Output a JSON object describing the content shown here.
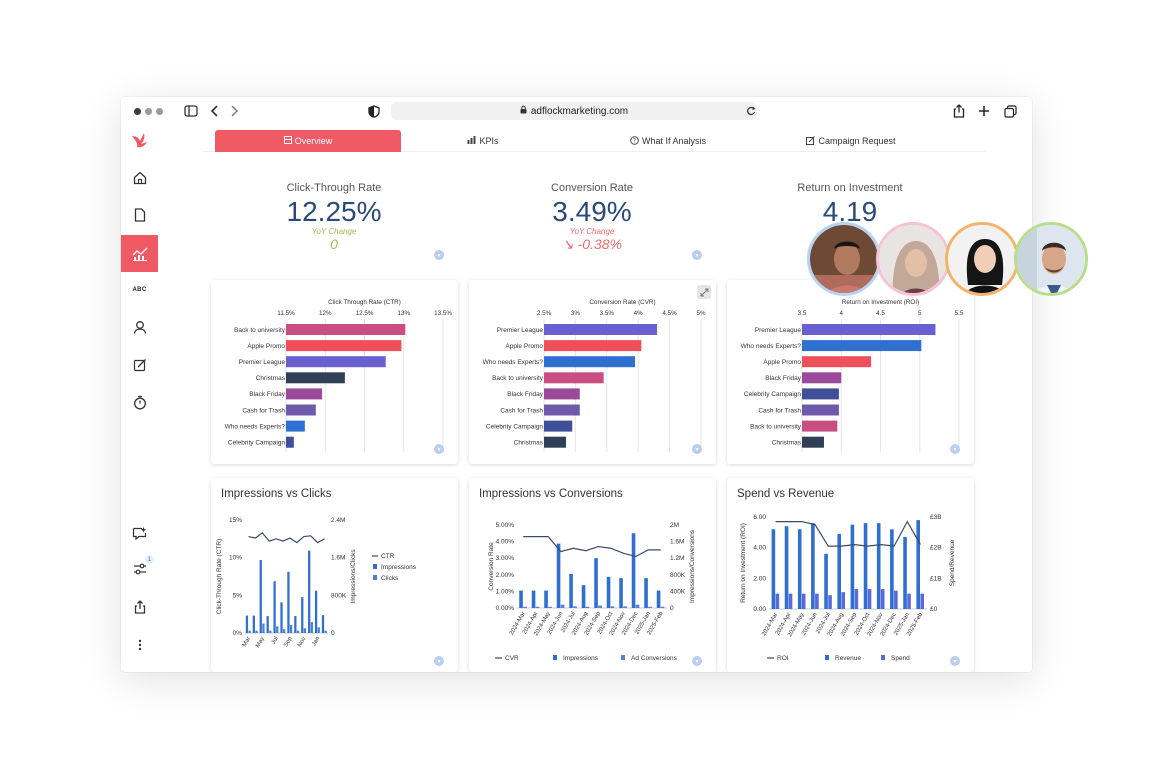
{
  "browser": {
    "url": "adflockmarketing.com",
    "icons": [
      "sidebar-toggle-icon",
      "back-icon",
      "forward-icon",
      "shield-icon",
      "lock-icon",
      "reload-icon",
      "share-icon",
      "plus-icon",
      "tabs-icon"
    ]
  },
  "sidebar": {
    "logo": "bird-logo-icon",
    "items": [
      {
        "name": "home",
        "icon": "home-icon"
      },
      {
        "name": "document",
        "icon": "document-icon"
      },
      {
        "name": "analytics",
        "icon": "chart-icon",
        "active": true
      },
      {
        "name": "abc",
        "label": "ABC"
      },
      {
        "name": "user",
        "icon": "user-icon"
      },
      {
        "name": "edit",
        "icon": "edit-icon"
      },
      {
        "name": "timer",
        "icon": "timer-icon"
      }
    ],
    "bottom": [
      {
        "name": "ai-chat",
        "icon": "sparkle-chat-icon"
      },
      {
        "name": "filters",
        "icon": "sliders-icon",
        "badge": "1"
      },
      {
        "name": "export",
        "icon": "upload-icon"
      },
      {
        "name": "more",
        "icon": "more-vertical-icon"
      }
    ]
  },
  "tabs": [
    {
      "label": "Overview",
      "icon": "overview-icon",
      "active": true
    },
    {
      "label": "KPIs",
      "icon": "kpi-icon"
    },
    {
      "label": "What If Analysis",
      "icon": "question-icon"
    },
    {
      "label": "Campaign Request",
      "icon": "edit-icon"
    }
  ],
  "kpis": [
    {
      "title": "Click-Through Rate",
      "value": "12.25%",
      "yoy_label": "YoY Change",
      "change": "0",
      "color": "#9bbf55"
    },
    {
      "title": "Conversion Rate",
      "value": "3.49%",
      "yoy_label": "YoY Change",
      "change": "↘ -0.38%",
      "color": "#ef6b6b"
    },
    {
      "title": "Return on Investment",
      "value": "4.19",
      "yoy_label": "",
      "change": "",
      "color": "#2b4a7a"
    }
  ],
  "colors": {
    "accent": "#ef5a64",
    "navy": "#2b4a7a"
  },
  "chart_data": [
    {
      "type": "bar",
      "orientation": "horizontal",
      "title": "Click Through Rate (CTR)",
      "ticks": [
        "11.5%",
        "12%",
        "12.5%",
        "13%",
        "13.5%"
      ],
      "xlim": [
        11.5,
        13.5
      ],
      "categories": [
        "Back to university",
        "Apple Promo",
        "Premier League",
        "Christmas",
        "Black Friday",
        "Cash for Trash",
        "Who needs Experts?",
        "Celebrity Campaign"
      ],
      "values": [
        13.02,
        12.97,
        12.77,
        12.25,
        11.96,
        11.88,
        11.74,
        11.6
      ],
      "colors": [
        "#c94f82",
        "#ef4f5a",
        "#6a5fd1",
        "#2f3f55",
        "#9a4a9a",
        "#6e5aa8",
        "#2f6fd0",
        "#3f4f9a"
      ]
    },
    {
      "type": "bar",
      "orientation": "horizontal",
      "title": "Conversion Rate (CVR)",
      "ticks": [
        "2.5%",
        "3%",
        "3.5%",
        "4%",
        "4.5%",
        "5%"
      ],
      "xlim": [
        2.5,
        5
      ],
      "categories": [
        "Premier League",
        "Apple Promo",
        "Who needs Experts?",
        "Back to university",
        "Black Friday",
        "Cash for Trash",
        "Celebrity Campaign",
        "Christmas"
      ],
      "values": [
        4.3,
        4.05,
        3.95,
        3.45,
        3.07,
        3.07,
        2.95,
        2.85
      ],
      "colors": [
        "#6a5fd1",
        "#ef4f5a",
        "#2f6fd0",
        "#c94f82",
        "#9a4a9a",
        "#6e5aa8",
        "#3f4f9a",
        "#2f3f55"
      ]
    },
    {
      "type": "bar",
      "orientation": "horizontal",
      "title": "Return on Investment (ROI)",
      "ticks": [
        "3.5",
        "4",
        "4.5",
        "5",
        "5.5"
      ],
      "xlim": [
        3.5,
        5.5
      ],
      "categories": [
        "Premier League",
        "Who needs Experts?",
        "Apple Promo",
        "Black Friday",
        "Celebrity Campaign",
        "Cash for Trash",
        "Back to university",
        "Christmas"
      ],
      "values": [
        5.2,
        5.02,
        4.38,
        4.0,
        3.97,
        3.97,
        3.95,
        3.78
      ],
      "colors": [
        "#6a5fd1",
        "#2f6fd0",
        "#ef4f5a",
        "#9a4a9a",
        "#3f4f9a",
        "#6e5aa8",
        "#c94f82",
        "#2f3f55"
      ]
    },
    {
      "type": "combo",
      "title": "Impressions vs Clicks",
      "ylabel": "Click-Through Rate (CTR)",
      "y2label": "Impressions/Clicks",
      "yticks": [
        "0%",
        "5%",
        "10%",
        "15%"
      ],
      "y2ticks": [
        "0",
        "800K",
        "1.6M",
        "2.4M"
      ],
      "categories": [
        "Mar",
        "Apr",
        "May",
        "Jun",
        "Jul",
        "Aug",
        "Sep",
        "Oct",
        "Nov",
        "Dec",
        "Jan",
        "Feb"
      ],
      "xticks": [
        "Mar",
        "May",
        "Jul",
        "Sep",
        "Nov",
        "Jan"
      ],
      "legend": [
        "CTR",
        "Impressions",
        "Clicks"
      ],
      "ctr": [
        12.8,
        12.6,
        13.3,
        12.2,
        12.5,
        12.2,
        12.6,
        12.0,
        12.8,
        12.9,
        12.0,
        12.5
      ],
      "impressions": [
        0.37,
        0.37,
        1.55,
        0.36,
        1.1,
        0.65,
        1.3,
        0.36,
        0.76,
        1.75,
        0.9,
        0.38
      ],
      "clicks": [
        0.05,
        0.05,
        0.2,
        0.05,
        0.14,
        0.08,
        0.17,
        0.05,
        0.1,
        0.23,
        0.12,
        0.05
      ]
    },
    {
      "type": "combo",
      "title": "Impressions vs Conversions",
      "ylabel": "Conversion Rate",
      "y2label": "Impressions/Conversions",
      "yticks": [
        "0.00%",
        "1.00%",
        "2.00%",
        "3.00%",
        "4.00%",
        "5.00%"
      ],
      "y2ticks": [
        "0",
        "400K",
        "800K",
        "1.2M",
        "1.6M",
        "2M"
      ],
      "categories": [
        "2024-Mar",
        "2024-Apr",
        "2024-May",
        "2024-Jun",
        "2024-Jul",
        "2024-Aug",
        "2024-Sep",
        "2024-Oct",
        "2024-Nov",
        "2024-Dec",
        "2025-Jan",
        "2025-Feb"
      ],
      "legend": [
        "CVR",
        "Impressions",
        "Ad Conversions"
      ],
      "cvr": [
        4.3,
        4.3,
        4.3,
        3.4,
        3.6,
        3.45,
        3.7,
        3.6,
        3.3,
        3.1,
        3.5,
        3.5
      ],
      "impressions": [
        0.42,
        0.42,
        0.42,
        1.55,
        0.82,
        0.55,
        1.2,
        0.75,
        0.72,
        1.8,
        0.72,
        0.42
      ],
      "conversions": [
        0.03,
        0.03,
        0.03,
        0.08,
        0.04,
        0.03,
        0.06,
        0.04,
        0.04,
        0.08,
        0.03,
        0.03
      ]
    },
    {
      "type": "combo",
      "title": "Spend vs Revenue",
      "ylabel": "Return on Investment (ROI)",
      "y2label": "Spend/Revenue",
      "yticks": [
        "0.00",
        "2.00",
        "4.00",
        "6.00"
      ],
      "y2ticks": [
        "£0",
        "£1B",
        "£2B",
        "£3B"
      ],
      "categories": [
        "2024-Mar",
        "2024-Apr",
        "2024-May",
        "2024-Jun",
        "2024-Jul",
        "2024-Aug",
        "2024-Sep",
        "2024-Oct",
        "2024-Nov",
        "2024-Dec",
        "2025-Jan",
        "2025-Feb"
      ],
      "legend": [
        "ROI",
        "Revenue",
        "Spend"
      ],
      "roi": [
        5.7,
        5.7,
        5.7,
        5.5,
        4.1,
        4.1,
        4.2,
        4.1,
        4.2,
        4.1,
        5.7,
        4.2
      ],
      "revenue": [
        2.6,
        2.7,
        2.6,
        2.8,
        1.8,
        2.45,
        2.75,
        2.8,
        2.8,
        2.6,
        2.35,
        2.9
      ],
      "spend": [
        0.5,
        0.5,
        0.5,
        0.5,
        0.45,
        0.55,
        0.65,
        0.65,
        0.65,
        0.6,
        0.5,
        0.5
      ]
    }
  ],
  "avatars": [
    "man-avatar",
    "woman-hijab-avatar",
    "woman-avatar",
    "man-beard-avatar"
  ]
}
